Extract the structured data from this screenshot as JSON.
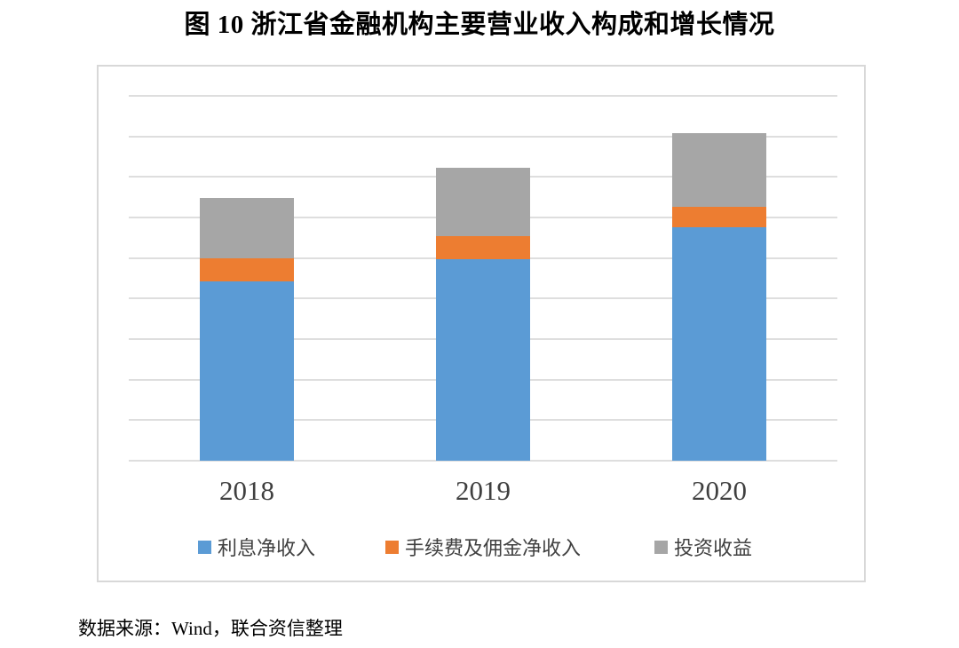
{
  "page": {
    "source_note": "数据来源：Wind，联合资信整理"
  },
  "chart_data": {
    "type": "bar",
    "stacked": true,
    "title": "图 10 浙江省金融机构主要营业收入构成和增长情况",
    "categories": [
      "2018",
      "2019",
      "2020"
    ],
    "series": [
      {
        "name": "利息净收入",
        "color": "#5B9BD5",
        "values": [
          4.43,
          4.98,
          5.77
        ]
      },
      {
        "name": "手续费及佣金净收入",
        "color": "#ED7D31",
        "values": [
          0.57,
          0.57,
          0.5
        ]
      },
      {
        "name": "投资收益",
        "color": "#A6A6A6",
        "values": [
          1.49,
          1.67,
          1.81
        ]
      }
    ],
    "totals": [
      6.49,
      7.22,
      8.08
    ],
    "value_axis_note": "values estimated in gridline units; y tick labels not shown in chart",
    "ylim": [
      0,
      9
    ],
    "gridline_interval": 1,
    "grid": "on",
    "gridline_color": "#dedede",
    "legend_position": "bottom",
    "xlabel": "",
    "ylabel": ""
  }
}
